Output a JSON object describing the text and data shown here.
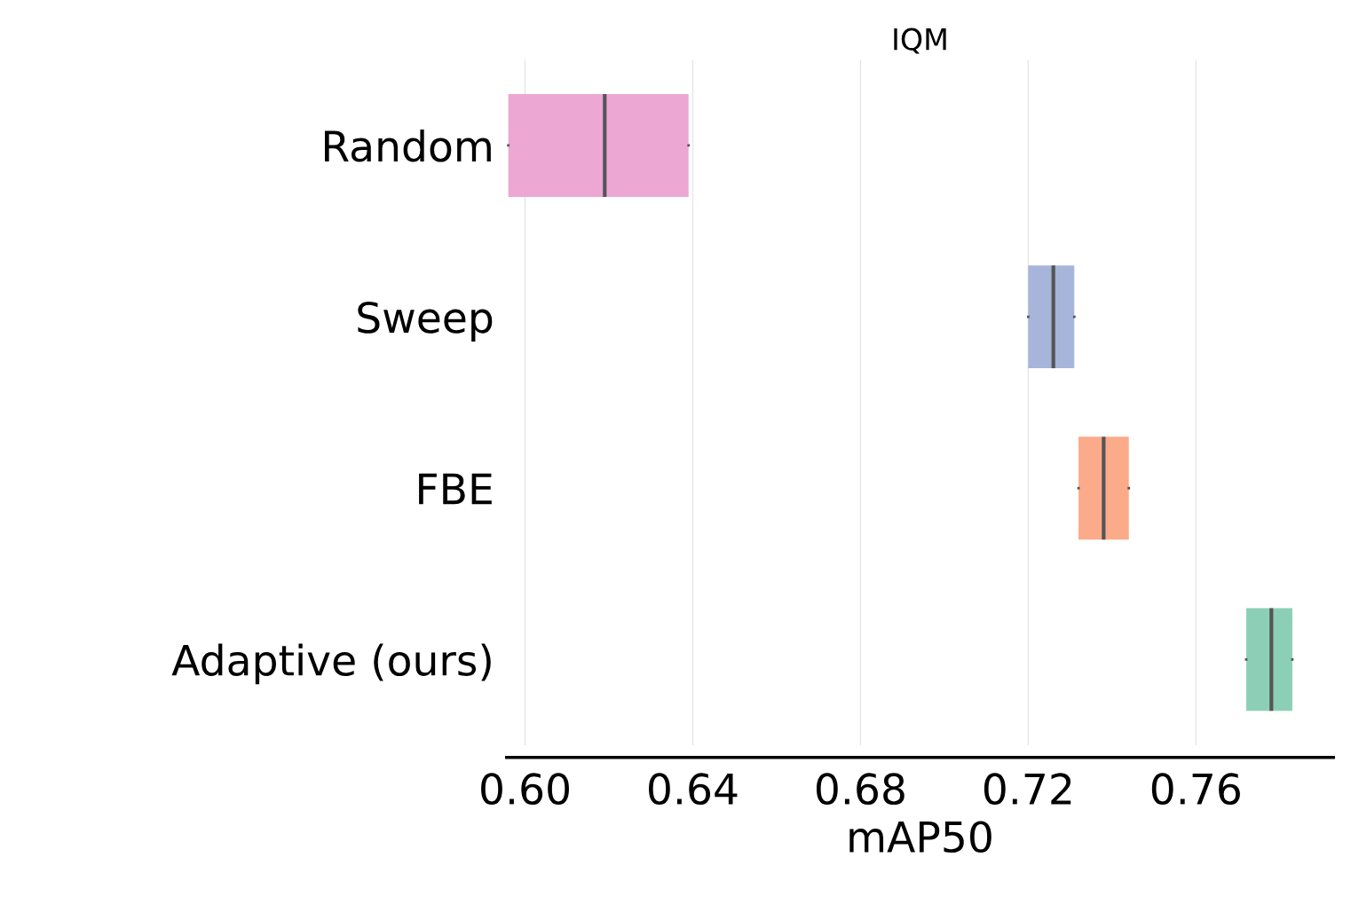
{
  "chart_data": {
    "type": "box",
    "orientation": "horizontal",
    "title": "IQM",
    "xlabel": "mAP50",
    "categories": [
      "Random",
      "Sweep",
      "FBE",
      "Adaptive (ours)"
    ],
    "colors": [
      "#eda7d3",
      "#a6b5d9",
      "#fbaa8a",
      "#8ccfb7"
    ],
    "boxes": [
      {
        "low": 0.596,
        "q1": 0.596,
        "median": 0.619,
        "q3": 0.639,
        "high": 0.639
      },
      {
        "low": 0.72,
        "q1": 0.72,
        "median": 0.726,
        "q3": 0.731,
        "high": 0.731
      },
      {
        "low": 0.732,
        "q1": 0.732,
        "median": 0.738,
        "q3": 0.744,
        "high": 0.744
      },
      {
        "low": 0.772,
        "q1": 0.772,
        "median": 0.778,
        "q3": 0.783,
        "high": 0.783
      }
    ],
    "xlim": [
      0.5956,
      0.7928
    ],
    "xticks": [
      {
        "value": 0.6,
        "label": "0.60"
      },
      0.64,
      0.68,
      0.72,
      0.76
    ],
    "grid": "x",
    "legend": false
  }
}
